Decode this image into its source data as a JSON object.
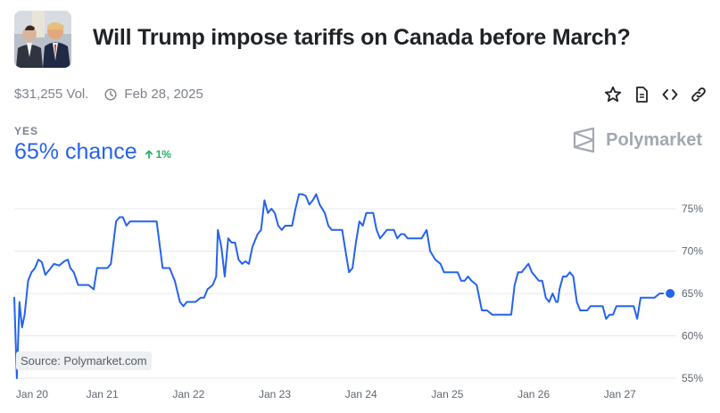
{
  "market": {
    "title": "Will Trump impose tariffs on Canada before March?",
    "volume": "$31,255 Vol.",
    "end_date": "Feb 28, 2025",
    "outcome": "YES",
    "chance": "65% chance",
    "change": "1%",
    "brand": "Polymarket",
    "source": "Source: Polymarket.com"
  },
  "icons": {
    "thumbnail": "market-thumbnail-image",
    "clock": "clock-icon",
    "star": "star-icon",
    "document": "document-icon",
    "embed": "code-icon",
    "link": "link-icon",
    "brand": "polymarket-logo-icon",
    "change": "arrow-up-icon"
  },
  "colors": {
    "line": "#2563eb",
    "up": "#27ae60",
    "grid": "#e6e8eb"
  },
  "chart_data": {
    "type": "line",
    "title": "",
    "xlabel": "",
    "ylabel": "",
    "ylim": [
      55,
      77
    ],
    "yticks": [
      75,
      70,
      65,
      60,
      55
    ],
    "ytick_labels": [
      "75%",
      "70%",
      "65%",
      "60%",
      "55%"
    ],
    "xticks": [
      {
        "label": "Jan 20",
        "x": 20
      },
      {
        "label": "Jan 21",
        "x": 21
      },
      {
        "label": "Jan 22",
        "x": 22
      },
      {
        "label": "Jan 23",
        "x": 23
      },
      {
        "label": "Jan 24",
        "x": 24
      },
      {
        "label": "Jan 25",
        "x": 25
      },
      {
        "label": "Jan 26",
        "x": 26
      },
      {
        "label": "Jan 27",
        "x": 27
      }
    ],
    "xlim": [
      19.98,
      27.55
    ],
    "grid": true,
    "series": [
      {
        "name": "",
        "points": [
          [
            19.98,
            64.5
          ],
          [
            20.01,
            55.0
          ],
          [
            20.04,
            64.0
          ],
          [
            20.07,
            61.0
          ],
          [
            20.1,
            62.5
          ],
          [
            20.14,
            66.5
          ],
          [
            20.18,
            67.5
          ],
          [
            20.22,
            68.0
          ],
          [
            20.26,
            69.0
          ],
          [
            20.3,
            68.7
          ],
          [
            20.34,
            67.2
          ],
          [
            20.38,
            67.7
          ],
          [
            20.44,
            68.5
          ],
          [
            20.5,
            68.3
          ],
          [
            20.56,
            68.8
          ],
          [
            20.6,
            69.0
          ],
          [
            20.63,
            68.0
          ],
          [
            20.67,
            67.5
          ],
          [
            20.72,
            66.0
          ],
          [
            20.78,
            66.0
          ],
          [
            20.84,
            66.0
          ],
          [
            20.9,
            65.5
          ],
          [
            20.94,
            68.0
          ],
          [
            21.0,
            68.0
          ],
          [
            21.06,
            68.0
          ],
          [
            21.1,
            68.5
          ],
          [
            21.16,
            73.5
          ],
          [
            21.2,
            74.0
          ],
          [
            21.24,
            74.0
          ],
          [
            21.28,
            73.0
          ],
          [
            21.32,
            73.5
          ],
          [
            21.36,
            73.5
          ],
          [
            21.42,
            73.5
          ],
          [
            21.48,
            73.5
          ],
          [
            21.52,
            73.5
          ],
          [
            21.56,
            73.5
          ],
          [
            21.6,
            73.5
          ],
          [
            21.63,
            73.5
          ],
          [
            21.7,
            68.0
          ],
          [
            21.78,
            68.0
          ],
          [
            21.84,
            66.5
          ],
          [
            21.9,
            64.0
          ],
          [
            21.94,
            63.5
          ],
          [
            21.98,
            64.0
          ],
          [
            22.04,
            64.0
          ],
          [
            22.08,
            64.0
          ],
          [
            22.14,
            64.5
          ],
          [
            22.18,
            64.5
          ],
          [
            22.22,
            65.5
          ],
          [
            22.28,
            66.0
          ],
          [
            22.32,
            67.0
          ],
          [
            22.34,
            72.5
          ],
          [
            22.38,
            70.5
          ],
          [
            22.42,
            67.0
          ],
          [
            22.46,
            71.5
          ],
          [
            22.5,
            71.0
          ],
          [
            22.54,
            71.0
          ],
          [
            22.58,
            69.0
          ],
          [
            22.62,
            68.5
          ],
          [
            22.66,
            68.8
          ],
          [
            22.7,
            68.5
          ],
          [
            22.74,
            70.5
          ],
          [
            22.8,
            72.0
          ],
          [
            22.84,
            72.5
          ],
          [
            22.88,
            76.0
          ],
          [
            22.92,
            74.5
          ],
          [
            22.96,
            75.0
          ],
          [
            23.0,
            74.5
          ],
          [
            23.04,
            73.0
          ],
          [
            23.08,
            72.5
          ],
          [
            23.12,
            73.0
          ],
          [
            23.16,
            73.0
          ],
          [
            23.2,
            73.0
          ],
          [
            23.24,
            75.0
          ],
          [
            23.28,
            76.7
          ],
          [
            23.32,
            76.7
          ],
          [
            23.36,
            76.5
          ],
          [
            23.4,
            75.5
          ],
          [
            23.44,
            76.0
          ],
          [
            23.48,
            76.7
          ],
          [
            23.52,
            75.5
          ],
          [
            23.58,
            74.5
          ],
          [
            23.62,
            73.0
          ],
          [
            23.66,
            72.5
          ],
          [
            23.7,
            72.5
          ],
          [
            23.74,
            72.5
          ],
          [
            23.78,
            72.5
          ],
          [
            23.82,
            70.0
          ],
          [
            23.86,
            67.5
          ],
          [
            23.9,
            68.0
          ],
          [
            23.94,
            71.0
          ],
          [
            23.98,
            73.5
          ],
          [
            24.02,
            73.0
          ],
          [
            24.06,
            74.5
          ],
          [
            24.1,
            74.5
          ],
          [
            24.14,
            74.5
          ],
          [
            24.18,
            72.5
          ],
          [
            24.22,
            71.5
          ],
          [
            24.26,
            72.0
          ],
          [
            24.3,
            72.5
          ],
          [
            24.34,
            72.5
          ],
          [
            24.38,
            72.5
          ],
          [
            24.42,
            71.5
          ],
          [
            24.46,
            72.0
          ],
          [
            24.5,
            72.0
          ],
          [
            24.54,
            71.5
          ],
          [
            24.58,
            71.5
          ],
          [
            24.62,
            71.5
          ],
          [
            24.66,
            71.5
          ],
          [
            24.7,
            71.5
          ],
          [
            24.76,
            72.5
          ],
          [
            24.8,
            70.0
          ],
          [
            24.86,
            69.0
          ],
          [
            24.92,
            68.5
          ],
          [
            24.96,
            67.5
          ],
          [
            25.0,
            67.5
          ],
          [
            25.04,
            67.5
          ],
          [
            25.08,
            67.5
          ],
          [
            25.12,
            67.5
          ],
          [
            25.16,
            66.5
          ],
          [
            25.2,
            66.5
          ],
          [
            25.24,
            67.0
          ],
          [
            25.28,
            66.5
          ],
          [
            25.34,
            66.0
          ],
          [
            25.4,
            63.0
          ],
          [
            25.46,
            63.0
          ],
          [
            25.52,
            62.5
          ],
          [
            25.58,
            62.5
          ],
          [
            25.64,
            62.5
          ],
          [
            25.7,
            62.5
          ],
          [
            25.74,
            62.5
          ],
          [
            25.78,
            66.0
          ],
          [
            25.82,
            67.5
          ],
          [
            25.86,
            67.5
          ],
          [
            25.9,
            68.0
          ],
          [
            25.94,
            68.5
          ],
          [
            25.98,
            67.5
          ],
          [
            26.02,
            67.0
          ],
          [
            26.06,
            66.5
          ],
          [
            26.1,
            66.5
          ],
          [
            26.14,
            64.5
          ],
          [
            26.18,
            64.0
          ],
          [
            26.22,
            65.0
          ],
          [
            26.26,
            64.0
          ],
          [
            26.28,
            64.0
          ],
          [
            26.3,
            65.5
          ],
          [
            26.34,
            67.0
          ],
          [
            26.38,
            67.0
          ],
          [
            26.42,
            67.5
          ],
          [
            26.46,
            67.0
          ],
          [
            26.5,
            64.0
          ],
          [
            26.54,
            63.0
          ],
          [
            26.58,
            63.0
          ],
          [
            26.62,
            63.0
          ],
          [
            26.66,
            63.5
          ],
          [
            26.7,
            63.5
          ],
          [
            26.74,
            63.5
          ],
          [
            26.8,
            63.5
          ],
          [
            26.84,
            62.0
          ],
          [
            26.88,
            62.5
          ],
          [
            26.92,
            62.5
          ],
          [
            26.96,
            63.5
          ],
          [
            27.0,
            63.5
          ],
          [
            27.04,
            63.5
          ],
          [
            27.1,
            63.5
          ],
          [
            27.16,
            63.5
          ],
          [
            27.2,
            62.0
          ],
          [
            27.24,
            64.5
          ],
          [
            27.3,
            64.5
          ],
          [
            27.36,
            64.5
          ],
          [
            27.4,
            64.5
          ],
          [
            27.46,
            65.0
          ],
          [
            27.5,
            65.0
          ]
        ]
      }
    ]
  }
}
